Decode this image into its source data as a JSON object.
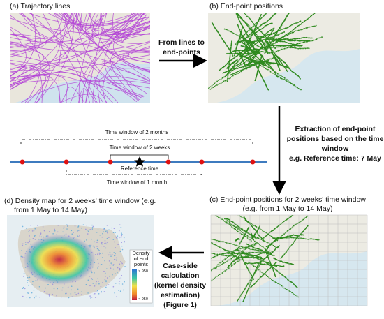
{
  "panels": [
    {
      "title": "(a) Trajectory lines"
    },
    {
      "title": "(b) End-point positions"
    },
    {
      "title": [
        "End-point positions for 2 weeks' time window",
        "(e.g. from 1 May to 14 May)"
      ],
      "prefix": "(c)"
    },
    {
      "title": [
        "(d) Density map for 2 weeks' time window (e.g.",
        "from 1 May to 14 May)"
      ],
      "legend": {
        "title": [
          "Density",
          "of end",
          "points"
        ],
        "high": "> 950",
        "low": "< 950"
      }
    }
  ],
  "arrows": [
    {
      "label": [
        "From lines to",
        "end-points"
      ]
    },
    {
      "label": [
        "Extraction of end-point",
        "positions based on the time",
        "window",
        "e.g. Reference time: 7 May"
      ]
    },
    {
      "label": [
        "Case-side",
        "calculation",
        "(kernel density",
        "estimation)",
        "(Figure 1)"
      ]
    }
  ],
  "timeline": {
    "two_months": "Time window of 2 months",
    "two_weeks": "Time window of 2 weeks",
    "reference": "Reference time",
    "one_month": "Time window of 1 month"
  }
}
